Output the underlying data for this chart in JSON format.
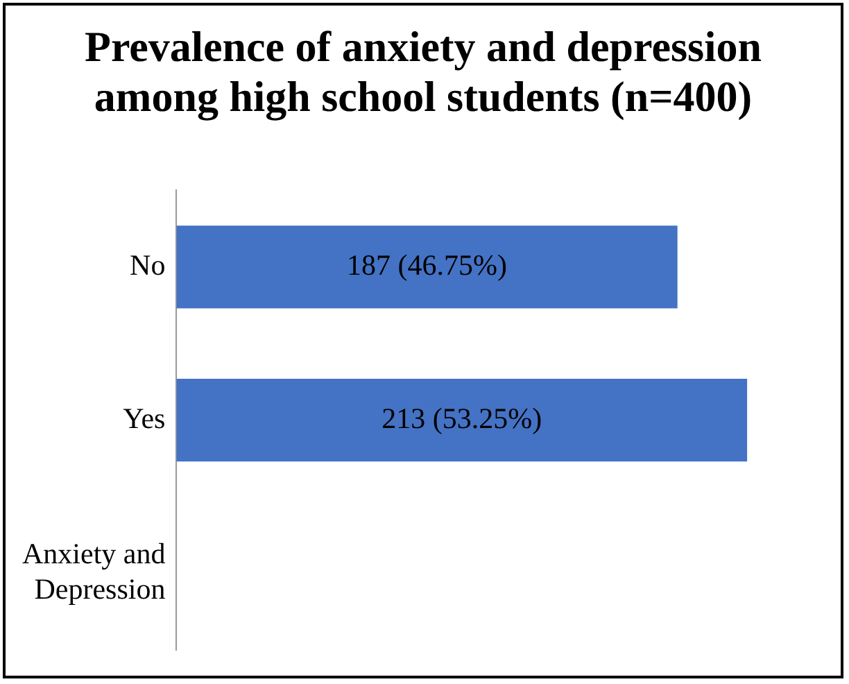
{
  "chart_data": {
    "type": "bar",
    "orientation": "horizontal",
    "title": "Prevalence of anxiety and depression among high school students (n=400)",
    "categories": [
      "No",
      "Yes",
      "Anxiety and Depression"
    ],
    "values": [
      187,
      213,
      null
    ],
    "value_labels": [
      "187 (46.75%)",
      "213 (53.25%)",
      null
    ],
    "color": "#4472c4"
  }
}
